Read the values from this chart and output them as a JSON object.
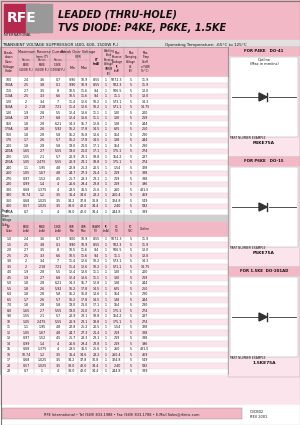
{
  "title_line1": "LEADED (THRU-HOLE)",
  "title_line2": "TVS DIODE: P4KE, P6KE, 1.5KE",
  "header_bg": "#f2b8c6",
  "table_pink": "#fce4ec",
  "white_bg": "#ffffff",
  "dark_pink": "#e8a0b4",
  "rfe_red": "#b5294e",
  "rfe_gray": "#999999",
  "text_dark": "#111111",
  "footer_text": "RFE International • Tel (949) 833-1988 • Fax (949) 833-1788 • E-Mail Sales@rfeinc.com",
  "footer_right": "C3CB02\nREV 2001",
  "doc_ref": "Operating Temperature: -65°C to 125°C",
  "main_header": "TRANSIENT VOLTAGE SUPPRESSOR (400, 600, 1500W Pₒ)",
  "watermark": "RFE",
  "table1_data": [
    [
      "100",
      "2.4",
      "3.6",
      "0.7",
      "9.90",
      "10.9",
      "8.55",
      "1",
      "5072.3",
      "5",
      "11.9",
      "0.1002"
    ],
    [
      "100A",
      "2.5",
      "3.8",
      "0.1",
      "9.90",
      "10.9",
      "8.55",
      "1",
      "502.3",
      "5",
      "11.9",
      "0.1002"
    ],
    [
      "110",
      "2.7",
      "3.5",
      "8",
      "10.5",
      "11.6",
      "9.4",
      "1",
      "506.5",
      "5",
      "13.0",
      "0.1007"
    ],
    [
      "110A",
      "2.5",
      "3.3",
      "6.6",
      "10.5",
      "11.6",
      "9.4",
      "1",
      "11.1",
      "5",
      "13.0",
      "0.1007"
    ],
    [
      "120",
      "2",
      "3.4",
      "7",
      "11.4",
      "12.6",
      "10.2",
      "1",
      "573.1",
      "5",
      "14.3",
      "0.1046"
    ],
    [
      "150A",
      "2",
      "2.18",
      "7.21",
      "11.4",
      "12.6",
      "10.2",
      "1",
      "571.1",
      "5",
      "14.75",
      "0.1046"
    ],
    [
      "130",
      "1.9",
      "2.8",
      "5.5",
      "12.4",
      "13.6",
      "11.1",
      "1",
      "130",
      "5",
      "200",
      "0.1048"
    ],
    [
      "130A",
      "1.9",
      "2.7",
      "6.8",
      "12.4",
      "13.6",
      "11.1",
      "1",
      "130",
      "5",
      "219",
      "0.1048"
    ],
    [
      "150",
      "1.8",
      "2.8",
      "6.21",
      "14.3",
      "15.7",
      "12.8",
      "1",
      "138",
      "5",
      "244",
      "0.1048"
    ],
    [
      "170A",
      "1.8",
      "2.6",
      "5.92",
      "16.2",
      "17.8",
      "14.5",
      "1",
      "625",
      "5",
      "250",
      "0.1048"
    ],
    [
      "160",
      "1.8",
      "2.8",
      "5.8",
      "15.2",
      "16.8",
      "13.6",
      "1",
      "154",
      "5",
      "230",
      "0.1048"
    ],
    [
      "170",
      "1.7",
      "2.6",
      "5.7",
      "16.2",
      "17.8",
      "14.5",
      "1",
      "138",
      "5",
      "244",
      "0.1048"
    ],
    [
      "200",
      "1.8",
      "2.8",
      "5.8",
      "19.0",
      "21.0",
      "17.1",
      "1",
      "154",
      "5",
      "230",
      "0.1048"
    ],
    [
      "200A",
      "1.65",
      "2.7",
      "5.55",
      "19.0",
      "21.0",
      "17.1",
      "1",
      "175.1",
      "5",
      "274",
      "0.1048"
    ],
    [
      "220",
      "1.55",
      "2.1",
      "5.7",
      "20.9",
      "23.1",
      "18.8",
      "1",
      "154.2",
      "5",
      "287",
      "0.1048"
    ],
    [
      "220A",
      "1.05",
      "2.475",
      "5.55",
      "20.9",
      "23.1",
      "18.8",
      "1",
      "175.1",
      "5",
      "274",
      "0.1048"
    ],
    [
      "240",
      "1.1",
      "1.95",
      "4.8",
      "22.8",
      "25.2",
      "20.5",
      "1",
      "1.54",
      "5",
      "328",
      "0.15"
    ],
    [
      "260",
      "1.05",
      "1.67",
      "4.8",
      "24.7",
      "27.3",
      "21.4",
      "1",
      "219",
      "5",
      "388",
      "0.15"
    ],
    [
      "270",
      "0.97",
      "1.52",
      "4.5",
      "25.7",
      "28.3",
      "23.1",
      "1",
      "219",
      "5",
      "388",
      "0.15"
    ],
    [
      "280",
      "0.99",
      "1.4",
      "4",
      "26.6",
      "29.4",
      "23.8",
      "1",
      "219",
      "5",
      "396",
      "0.15"
    ],
    [
      "300",
      "0.68",
      "1.375",
      "4",
      "28.5",
      "31.5",
      "25.6",
      "1",
      "260",
      "5",
      "431.5",
      "0.15"
    ],
    [
      "330",
      "10.74",
      "1.2",
      "3.5",
      "31.4",
      "34.6",
      "28.2",
      "1",
      "260.4",
      "5",
      "469",
      "0.15"
    ],
    [
      "360",
      "0.68",
      "1.025",
      "3.5",
      "34.2",
      "37.8",
      "30.8",
      "1",
      "324.8",
      "5",
      "549",
      "0.15"
    ],
    [
      "400",
      "0.57",
      "1.025",
      "3.5",
      "38.0",
      "42.0",
      "34.4",
      "1",
      "2.40",
      "5",
      "592",
      "0.15"
    ],
    [
      "400A",
      "0.7",
      "1",
      "4",
      "38.0",
      "42.0",
      "34.4",
      "1",
      "244.8",
      "5",
      "389",
      "0.15"
    ]
  ],
  "table2_data": [
    [
      "1.0",
      "2.4",
      "3.6",
      "0.7",
      "9.00",
      "10.9",
      "8.55",
      "1",
      "5072.3",
      "5",
      "11.9",
      "0.1002"
    ],
    [
      "1.5",
      "2.5",
      "3.8",
      "0.1",
      "9.90",
      "10.9",
      "8.55",
      "1",
      "502.3",
      "5",
      "11.9",
      "0.1002"
    ],
    [
      "2.0",
      "2.7",
      "3.5",
      "8",
      "10.5",
      "11.6",
      "9.4",
      "1",
      "506.5",
      "5",
      "13.0",
      "0.1007"
    ],
    [
      "2.5",
      "2.5",
      "3.3",
      "6.6",
      "10.5",
      "11.6",
      "9.4",
      "1",
      "11.1",
      "5",
      "13.0",
      "0.1007"
    ],
    [
      "3.0",
      "2",
      "3.4",
      "7",
      "11.4",
      "12.6",
      "10.2",
      "1",
      "573.1",
      "5",
      "14.3",
      "0.1046"
    ],
    [
      "3.5",
      "2",
      "2.18",
      "7.21",
      "11.4",
      "12.6",
      "10.2",
      "1",
      "571.1",
      "5",
      "14.75",
      "0.1046"
    ],
    [
      "4.0",
      "1.9",
      "2.8",
      "5.5",
      "12.4",
      "13.6",
      "11.1",
      "1",
      "130",
      "5",
      "200",
      "0.1048"
    ],
    [
      "4.5",
      "1.9",
      "2.7",
      "6.8",
      "12.4",
      "13.6",
      "11.1",
      "1",
      "130",
      "5",
      "219",
      "0.1048"
    ],
    [
      "5.0",
      "1.8",
      "2.8",
      "6.21",
      "14.3",
      "15.7",
      "12.8",
      "1",
      "138",
      "5",
      "244",
      "0.1048"
    ],
    [
      "5.5",
      "1.8",
      "2.6",
      "5.92",
      "16.2",
      "17.8",
      "14.5",
      "1",
      "625",
      "5",
      "250",
      "0.1048"
    ],
    [
      "6.0",
      "1.8",
      "2.8",
      "5.8",
      "15.2",
      "16.8",
      "13.6",
      "1",
      "154",
      "5",
      "230",
      "0.1048"
    ],
    [
      "6.5",
      "1.7",
      "2.6",
      "5.7",
      "16.2",
      "17.8",
      "14.5",
      "1",
      "138",
      "5",
      "244",
      "0.1048"
    ],
    [
      "7.0",
      "1.8",
      "2.8",
      "5.8",
      "19.0",
      "21.0",
      "17.1",
      "1",
      "154",
      "5",
      "230",
      "0.1048"
    ],
    [
      "8.0",
      "1.65",
      "2.7",
      "5.55",
      "19.0",
      "21.0",
      "17.1",
      "1",
      "175.1",
      "5",
      "274",
      "0.1048"
    ],
    [
      "9.0",
      "1.55",
      "2.1",
      "5.7",
      "20.9",
      "23.1",
      "18.8",
      "1",
      "154.2",
      "5",
      "287",
      "0.1048"
    ],
    [
      "10",
      "1.05",
      "2.475",
      "5.55",
      "20.9",
      "23.1",
      "18.8",
      "1",
      "175.1",
      "5",
      "274",
      "0.1048"
    ],
    [
      "11",
      "1.1",
      "1.95",
      "4.8",
      "22.8",
      "25.2",
      "20.5",
      "1",
      "1.54",
      "5",
      "328",
      "0.15"
    ],
    [
      "12",
      "1.05",
      "1.67",
      "4.8",
      "24.7",
      "27.3",
      "21.4",
      "1",
      "219",
      "5",
      "388",
      "0.15"
    ],
    [
      "13",
      "0.97",
      "1.52",
      "4.5",
      "25.7",
      "28.3",
      "23.1",
      "1",
      "219",
      "5",
      "388",
      "0.15"
    ],
    [
      "14",
      "0.99",
      "1.4",
      "4",
      "26.6",
      "29.4",
      "23.8",
      "1",
      "219",
      "5",
      "396",
      "0.15"
    ],
    [
      "15",
      "0.68",
      "1.375",
      "4",
      "28.5",
      "31.5",
      "25.6",
      "1",
      "260",
      "5",
      "431.5",
      "0.15"
    ],
    [
      "16",
      "10.74",
      "1.2",
      "3.5",
      "31.4",
      "34.6",
      "28.2",
      "1",
      "260.4",
      "5",
      "469",
      "0.15"
    ],
    [
      "17",
      "0.68",
      "1.025",
      "3.5",
      "34.2",
      "37.8",
      "30.8",
      "1",
      "324.8",
      "5",
      "549",
      "0.15"
    ],
    [
      "20",
      "0.57",
      "1.025",
      "3.5",
      "38.0",
      "42.0",
      "34.4",
      "1",
      "2.40",
      "5",
      "592",
      "0.15"
    ],
    [
      "22",
      "0.7",
      "1",
      "4",
      "38.0",
      "42.0",
      "34.4",
      "1",
      "244.8",
      "5",
      "389",
      "0.15"
    ]
  ],
  "part_examples": [
    "P4KE75A",
    "P6KE75A",
    "1.5KE75A"
  ],
  "package_titles": [
    "FOR P4KE   DO-41",
    "FOR P6KE   DO-15",
    "FOR 1.5KE  DO-201AD"
  ]
}
